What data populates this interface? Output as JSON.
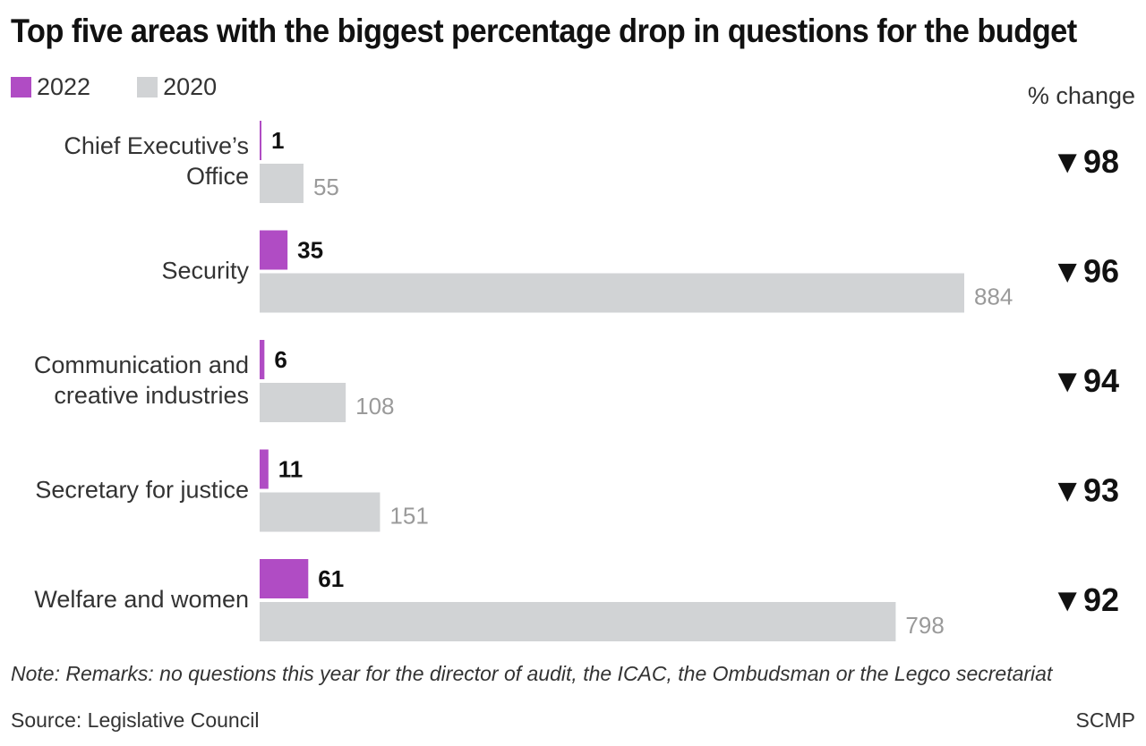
{
  "colors": {
    "series_2022": "#b04cc4",
    "series_2020": "#d1d3d5",
    "label_2022": "#111111",
    "label_2020": "#9a9a9a"
  },
  "chart_data": {
    "type": "bar",
    "orientation": "horizontal",
    "title": "Top five areas with the biggest percentage drop in questions for the budget",
    "categories": [
      [
        "Chief Executive’s",
        "Office"
      ],
      [
        "Security"
      ],
      [
        "Communication and",
        "creative industries"
      ],
      [
        "Secretary for justice"
      ],
      [
        "Welfare and women"
      ]
    ],
    "series": [
      {
        "name": "2022",
        "values": [
          1,
          35,
          6,
          11,
          61
        ]
      },
      {
        "name": "2020",
        "values": [
          55,
          884,
          108,
          151,
          798
        ]
      }
    ],
    "pct_change_header": "% change",
    "pct_change": [
      "▼98",
      "▼96",
      "▼94",
      "▼93",
      "▼92"
    ],
    "xlim": [
      0,
      884
    ],
    "grid": false,
    "legend_position": "top-left"
  },
  "footer": {
    "note": "Note: Remarks: no questions this year for the director of audit, the ICAC, the Ombudsman or the Legco secretariat",
    "source": "Source: Legislative Council",
    "credit": "SCMP"
  }
}
